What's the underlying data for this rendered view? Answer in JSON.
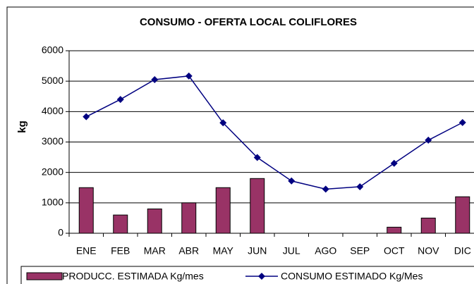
{
  "chart_data": {
    "type": "bar_line",
    "title": "CONSUMO - OFERTA LOCAL COLIFLORES",
    "y_label": "kg",
    "categories": [
      "ENE",
      "FEB",
      "MAR",
      "ABR",
      "MAY",
      "JUN",
      "JUL",
      "AGO",
      "SEP",
      "OCT",
      "NOV",
      "DIC"
    ],
    "series": [
      {
        "name": "PRODUCC. ESTIMADA Kg/mes",
        "type": "bar",
        "color": "#993366",
        "values": [
          1500,
          600,
          800,
          1000,
          1500,
          1800,
          0,
          0,
          0,
          200,
          500,
          1200
        ]
      },
      {
        "name": "CONSUMO ESTIMADO Kg/Mes",
        "type": "line",
        "color": "#000080",
        "values": [
          3830,
          4400,
          5050,
          5170,
          3630,
          2490,
          1720,
          1450,
          1530,
          2300,
          3060,
          3640
        ]
      }
    ],
    "ylim": [
      0,
      6000
    ],
    "yticks": [
      0,
      1000,
      2000,
      3000,
      4000,
      5000,
      6000
    ],
    "grid": true,
    "legend": "bottom"
  }
}
